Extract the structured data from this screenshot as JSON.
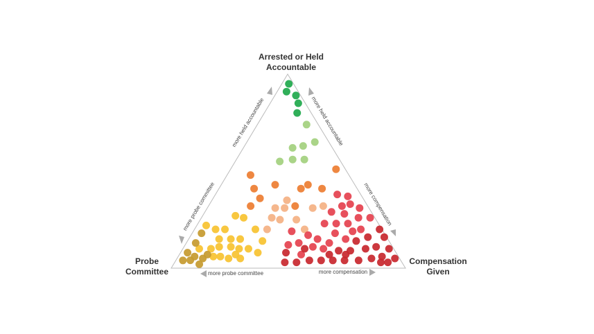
{
  "chart_data": {
    "type": "ternary",
    "corner_labels": {
      "top": [
        "Arrested or Held",
        "Accountable"
      ],
      "left": [
        "Probe",
        "Committee"
      ],
      "right": [
        "Compensation",
        "Given"
      ]
    },
    "edge_labels": [
      "more held accountable",
      "more probe committee",
      "more held accountable",
      "more compensation",
      "more probe committee",
      "more compensation"
    ],
    "series": [
      {
        "color": "#1ea84b",
        "values": [
          [
            95,
            2,
            3
          ],
          [
            91,
            5,
            4
          ],
          [
            89,
            2,
            9
          ],
          [
            85,
            3,
            12
          ],
          [
            80,
            6,
            14
          ]
        ]
      },
      {
        "color": "#a3d07e",
        "values": [
          [
            74,
            5,
            21
          ],
          [
            63,
            12,
            25
          ],
          [
            62,
            17,
            21
          ],
          [
            65,
            6,
            29
          ],
          [
            56,
            20,
            24
          ],
          [
            55,
            26,
            19
          ],
          [
            56,
            15,
            29
          ]
        ]
      },
      {
        "color": "#ed7d31",
        "values": [
          [
            48,
            42,
            10
          ],
          [
            43,
            34,
            23
          ],
          [
            41,
            44,
            15
          ],
          [
            41,
            24,
            35
          ],
          [
            43,
            20,
            37
          ],
          [
            41,
            15,
            44
          ],
          [
            51,
            4,
            45
          ],
          [
            36,
            44,
            20
          ],
          [
            32,
            50,
            18
          ],
          [
            32,
            31,
            37
          ]
        ]
      },
      {
        "color": "#f4b183",
        "values": [
          [
            35,
            33,
            32
          ],
          [
            31,
            40,
            29
          ],
          [
            31,
            36,
            33
          ],
          [
            26,
            44,
            30
          ],
          [
            25,
            41,
            34
          ],
          [
            20,
            49,
            31
          ],
          [
            25,
            34,
            41
          ],
          [
            31,
            24,
            45
          ],
          [
            32,
            19,
            49
          ],
          [
            20,
            33,
            47
          ]
        ]
      },
      {
        "color": "#f7c230",
        "values": [
          [
            22,
            74,
            4
          ],
          [
            20,
            71,
            9
          ],
          [
            20,
            67,
            13
          ],
          [
            27,
            59,
            14
          ],
          [
            26,
            56,
            18
          ],
          [
            15,
            72,
            13
          ],
          [
            15,
            67,
            18
          ],
          [
            15,
            63,
            22
          ],
          [
            20,
            54,
            26
          ],
          [
            14,
            54,
            32
          ],
          [
            10,
            83,
            7
          ],
          [
            10,
            78,
            12
          ],
          [
            11,
            74,
            15
          ],
          [
            11,
            69,
            20
          ],
          [
            10,
            66,
            24
          ],
          [
            7,
            69,
            24
          ],
          [
            10,
            62,
            28
          ],
          [
            8,
            59,
            33
          ],
          [
            6,
            76,
            18
          ],
          [
            5,
            73,
            22
          ],
          [
            5,
            68,
            27
          ],
          [
            6,
            79,
            15
          ]
        ]
      },
      {
        "color": "#c69a2f",
        "values": [
          [
            18,
            78,
            4
          ],
          [
            13,
            83,
            4
          ],
          [
            8,
            89,
            3
          ],
          [
            6,
            87,
            7
          ],
          [
            4,
            93,
            3
          ],
          [
            4,
            88,
            6
          ],
          [
            5,
            84,
            11
          ],
          [
            2,
            87,
            11
          ],
          [
            7,
            81,
            12
          ]
        ]
      },
      {
        "color": "#e5414e",
        "values": [
          [
            38,
            10,
            52
          ],
          [
            37,
            6,
            57
          ],
          [
            32,
            11,
            57
          ],
          [
            33,
            7,
            60
          ],
          [
            31,
            4,
            65
          ],
          [
            29,
            17,
            54
          ],
          [
            28,
            12,
            60
          ],
          [
            23,
            23,
            54
          ],
          [
            23,
            18,
            59
          ],
          [
            23,
            13,
            64
          ],
          [
            26,
            7,
            67
          ],
          [
            26,
            2,
            72
          ],
          [
            18,
            21,
            61
          ],
          [
            15,
            30,
            55
          ],
          [
            17,
            33,
            50
          ],
          [
            13,
            39,
            48
          ],
          [
            19,
            39,
            42
          ],
          [
            11,
            34,
            55
          ],
          [
            10,
            30,
            60
          ],
          [
            7,
            41,
            52
          ],
          [
            12,
            44,
            44
          ],
          [
            19,
            13,
            68
          ],
          [
            20,
            9,
            71
          ],
          [
            15,
            18,
            67
          ],
          [
            13,
            26,
            61
          ]
        ]
      },
      {
        "color": "#c8272e",
        "values": [
          [
            20,
            1,
            79
          ],
          [
            16,
            1,
            83
          ],
          [
            16,
            8,
            76
          ],
          [
            14,
            14,
            72
          ],
          [
            11,
            7,
            82
          ],
          [
            10,
            2,
            88
          ],
          [
            10,
            12,
            78
          ],
          [
            9,
            19,
            72
          ],
          [
            9,
            24,
            67
          ],
          [
            6,
            7,
            87
          ],
          [
            5,
            12,
            83
          ],
          [
            4,
            18,
            78
          ],
          [
            5,
            2,
            93
          ],
          [
            3,
            6,
            91
          ],
          [
            4,
            24,
            72
          ],
          [
            4,
            29,
            67
          ],
          [
            4,
            34,
            62
          ],
          [
            4,
            39,
            57
          ],
          [
            3,
            45,
            52
          ],
          [
            3,
            50,
            47
          ],
          [
            8,
            47,
            45
          ],
          [
            10,
            38,
            52
          ],
          [
            7,
            29,
            64
          ],
          [
            7,
            22,
            71
          ],
          [
            3,
            9,
            88
          ]
        ]
      }
    ]
  }
}
